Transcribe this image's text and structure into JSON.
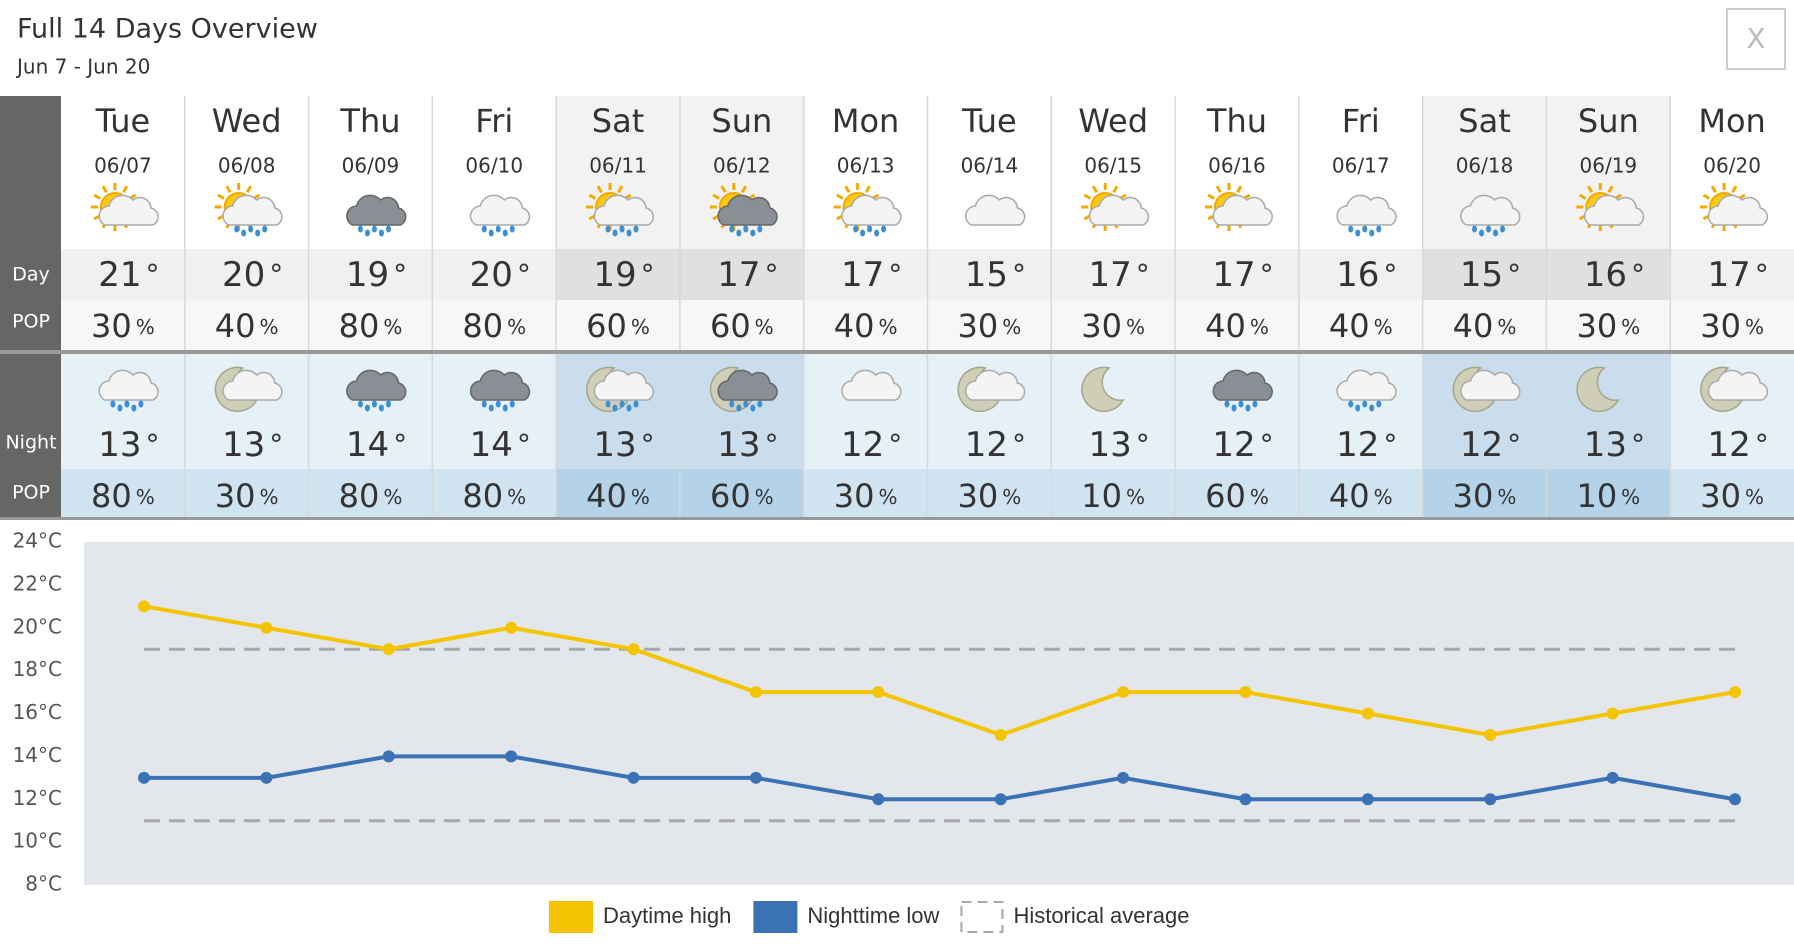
{
  "header": {
    "title": "Full 14 Days Overview",
    "subtitle": "Jun 7 - Jun 20",
    "close": "X"
  },
  "table": {
    "row_labels": {
      "day": "Day",
      "day_pop": "POP",
      "night": "Night",
      "night_pop": "POP"
    },
    "degree": "°",
    "percent": "%",
    "days": [
      {
        "weekday": "Tue",
        "date": "06/07",
        "day_temp": 21,
        "day_pop": 30,
        "night_temp": 13,
        "night_pop": 80
      },
      {
        "weekday": "Wed",
        "date": "06/08",
        "day_temp": 20,
        "day_pop": 40,
        "night_temp": 13,
        "night_pop": 30
      },
      {
        "weekday": "Thu",
        "date": "06/09",
        "day_temp": 19,
        "day_pop": 80,
        "night_temp": 14,
        "night_pop": 80
      },
      {
        "weekday": "Fri",
        "date": "06/10",
        "day_temp": 20,
        "day_pop": 80,
        "night_temp": 14,
        "night_pop": 80
      },
      {
        "weekday": "Sat",
        "date": "06/11",
        "day_temp": 19,
        "day_pop": 60,
        "night_temp": 13,
        "night_pop": 40
      },
      {
        "weekday": "Sun",
        "date": "06/12",
        "day_temp": 17,
        "day_pop": 60,
        "night_temp": 13,
        "night_pop": 60
      },
      {
        "weekday": "Mon",
        "date": "06/13",
        "day_temp": 17,
        "day_pop": 40,
        "night_temp": 12,
        "night_pop": 30
      },
      {
        "weekday": "Tue",
        "date": "06/14",
        "day_temp": 15,
        "day_pop": 30,
        "night_temp": 12,
        "night_pop": 30
      },
      {
        "weekday": "Wed",
        "date": "06/15",
        "day_temp": 17,
        "day_pop": 30,
        "night_temp": 13,
        "night_pop": 10
      },
      {
        "weekday": "Thu",
        "date": "06/16",
        "day_temp": 17,
        "day_pop": 40,
        "night_temp": 12,
        "night_pop": 60
      },
      {
        "weekday": "Fri",
        "date": "06/17",
        "day_temp": 16,
        "day_pop": 40,
        "night_temp": 12,
        "night_pop": 40
      },
      {
        "weekday": "Sat",
        "date": "06/18",
        "day_temp": 15,
        "day_pop": 40,
        "night_temp": 12,
        "night_pop": 30
      },
      {
        "weekday": "Sun",
        "date": "06/19",
        "day_temp": 16,
        "day_pop": 30,
        "night_temp": 13,
        "night_pop": 10
      },
      {
        "weekday": "Mon",
        "date": "06/20",
        "day_temp": 17,
        "day_pop": 30,
        "night_temp": 12,
        "night_pop": 30
      }
    ]
  },
  "chart_data": {
    "type": "line",
    "categories": [
      null,
      null,
      null,
      null,
      null,
      null,
      null,
      null,
      null,
      null,
      null,
      null,
      null,
      null
    ],
    "series": [
      {
        "name": "Daytime high",
        "color": "#f5c400",
        "values": [
          21,
          20,
          19,
          20,
          19,
          17,
          17,
          15,
          17,
          17,
          16,
          15,
          16,
          17
        ]
      },
      {
        "name": "Nighttime low",
        "color": "#3a72b5",
        "values": [
          13,
          13,
          14,
          14,
          13,
          13,
          12,
          12,
          13,
          12,
          12,
          12,
          13,
          12
        ]
      }
    ],
    "historical_average": {
      "name": "Historical average",
      "color": "#a8a8a8",
      "values": [
        19,
        11
      ]
    },
    "ylim": [
      8,
      24
    ],
    "yticks": [
      {
        "value": 8,
        "label": "8°C"
      },
      {
        "value": 10,
        "label": "10°C"
      },
      {
        "value": 12,
        "label": "12°C"
      },
      {
        "value": 14,
        "label": "14°C"
      },
      {
        "value": 16,
        "label": "16°C"
      },
      {
        "value": 18,
        "label": "18°C"
      },
      {
        "value": 20,
        "label": "20°C"
      },
      {
        "value": 22,
        "label": "22°C"
      },
      {
        "value": 24,
        "label": "24°C"
      }
    ],
    "grid": false
  }
}
